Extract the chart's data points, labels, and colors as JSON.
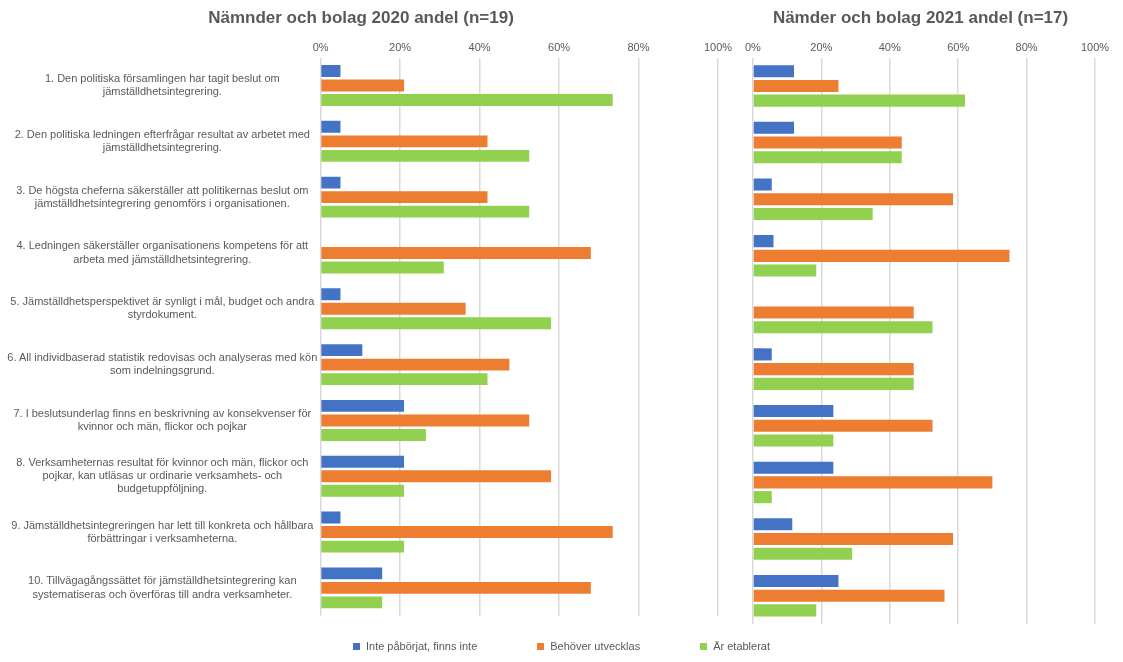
{
  "chart_data": [
    {
      "type": "bar",
      "orientation": "horizontal",
      "title": "Nämnder och bolag 2020 andel (n=19)",
      "categories": [
        "1. Den politiska församlingen har tagit beslut om jämställdhetsintegrering.",
        "2. Den politiska ledningen efterfrågar resultat av arbetet med jämställdhetsintegrering.",
        "3. De högsta cheferna säkerställer att politikernas beslut om jämställdhetsintegrering genomförs i organisationen.",
        "4. Ledningen säkerställer organisationens kompetens för att arbeta med jämställdhetsintegrering.",
        "5. Jämställdhetsperspektivet är synligt i mål, budget och andra styrdokument.",
        "6. All individbaserad statistik redovisas och analyseras med kön som indelningsgrund.",
        "7. I beslutsunderlag finns en beskrivning av konsekvenser för kvinnor och män, flickor och pojkar",
        "8. Verksamheternas resultat för kvinnor och män, flickor och pojkar, kan utläsas ur ordinarie verksamhets- och budgetuppföljning.",
        "9. Jämställdhetsintegreringen har lett till konkreta och hållbara förbättringar i verksamheterna.",
        "10. Tillvägagångssättet för jämställdhetsintegrering kan systematiseras och överföras till andra verksamheter."
      ],
      "series": [
        {
          "name": "Inte påbörjat, finns inte",
          "color": "#4472c4",
          "values": [
            5,
            5,
            5,
            0,
            5,
            10.5,
            21,
            21,
            5,
            15.5
          ]
        },
        {
          "name": "Behöver utvecklas",
          "color": "#ed7d31",
          "values": [
            21,
            42,
            42,
            68,
            36.5,
            47.5,
            52.5,
            58,
            73.5,
            68
          ]
        },
        {
          "name": "Är etablerat",
          "color": "#92d050",
          "values": [
            73.5,
            52.5,
            52.5,
            31,
            58,
            42,
            26.5,
            21,
            21,
            15.5
          ]
        }
      ],
      "xlim": [
        0,
        100
      ],
      "xticks": [
        {
          "value": 0,
          "label": "0%"
        },
        {
          "value": 20,
          "label": "20%"
        },
        {
          "value": 40,
          "label": "40%"
        },
        {
          "value": 60,
          "label": "60%"
        },
        {
          "value": 80,
          "label": "80%"
        },
        {
          "value": 100,
          "label": "100%"
        }
      ],
      "grid": "x",
      "legend": "bottom"
    },
    {
      "type": "bar",
      "orientation": "horizontal",
      "title": "Nämder och bolag 2021 andel (n=17)",
      "categories": [
        null,
        null,
        null,
        null,
        null,
        null,
        null,
        null,
        null,
        null
      ],
      "series": [
        {
          "color": "#4472c4",
          "values": [
            12,
            12,
            5.5,
            6,
            0,
            5.5,
            23.5,
            23.5,
            11.5,
            25
          ]
        },
        {
          "color": "#ed7d31",
          "values": [
            25,
            43.5,
            58.5,
            75,
            47,
            47,
            52.5,
            70,
            58.5,
            56
          ]
        },
        {
          "color": "#92d050",
          "values": [
            62,
            43.5,
            35,
            18.5,
            52.5,
            47,
            23.5,
            5.5,
            29,
            18.5
          ]
        }
      ],
      "xlim": [
        0,
        100
      ],
      "xticks": [
        {
          "value": 0,
          "label": "0%"
        },
        {
          "value": 20,
          "label": "20%"
        },
        {
          "value": 40,
          "label": "40%"
        },
        {
          "value": 60,
          "label": "60%"
        },
        {
          "value": 80,
          "label": "80%"
        },
        {
          "value": 100,
          "label": "100%"
        }
      ],
      "grid": "x",
      "tick_labels": "x"
    }
  ]
}
